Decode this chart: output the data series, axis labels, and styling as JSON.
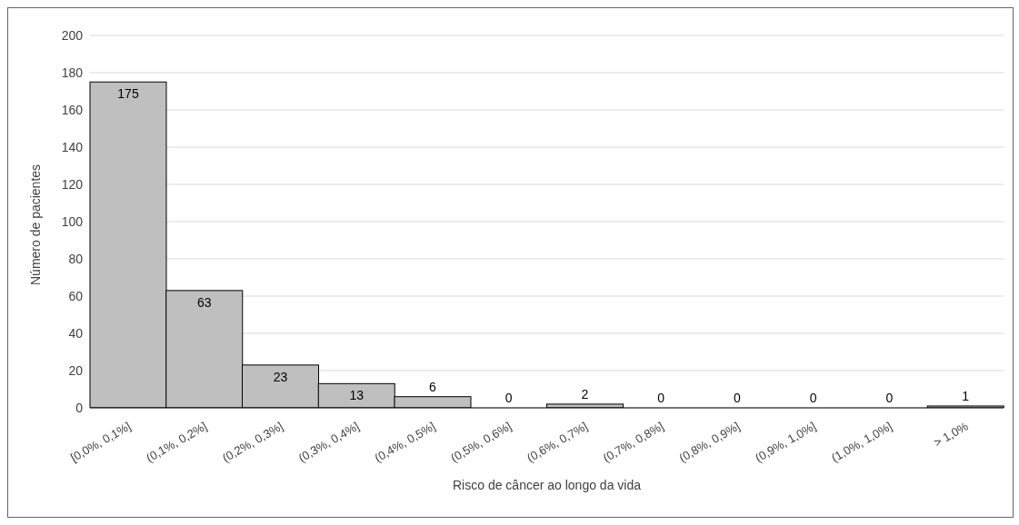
{
  "chart_data": {
    "type": "bar",
    "xlabel": "Risco de câncer ao longo da vida",
    "ylabel": "Número de pacientes",
    "categories": [
      "[0,0%, 0,1%]",
      "(0,1%, 0,2%]",
      "(0,2%, 0,3%]",
      "(0,3%, 0,4%]",
      "(0,4%, 0,5%]",
      "(0,5%, 0,6%]",
      "(0,6%, 0,7%]",
      "(0,7%, 0,8%]",
      "(0,8%, 0,9%]",
      "(0,9%, 1,0%]",
      "(1,0%, 1,0%]",
      "> 1,0%"
    ],
    "values": [
      175,
      63,
      23,
      13,
      6,
      0,
      2,
      0,
      0,
      0,
      0,
      1
    ],
    "color": "#bfbfbf",
    "data_labels": true,
    "grid": "y",
    "ylim": [
      0,
      200
    ],
    "yticks": [
      0,
      20,
      40,
      60,
      80,
      100,
      120,
      140,
      160,
      180,
      200
    ]
  }
}
